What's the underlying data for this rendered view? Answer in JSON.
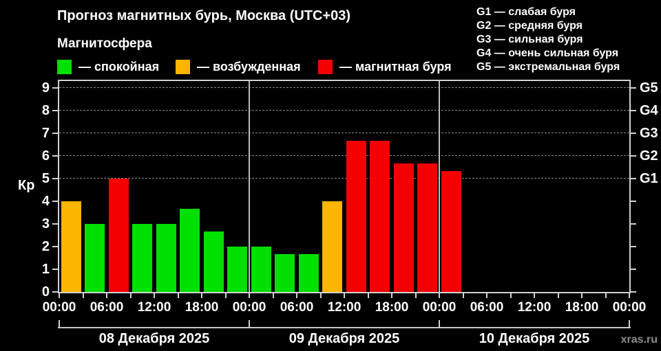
{
  "header": {
    "title": "Прогноз магнитных бурь, Москва (UTC+03)",
    "subtitle": "Магнитосфера"
  },
  "magnetosphere_legend": [
    {
      "key": "quiet",
      "color": "#00e000",
      "label": "— спокойная"
    },
    {
      "key": "unsettled",
      "color": "#fcb500",
      "label": "— возбужденная"
    },
    {
      "key": "storm",
      "color": "#f40000",
      "label": "— магнитная буря"
    }
  ],
  "g_scale_legend": [
    {
      "label": "G1 — слабая буря"
    },
    {
      "label": "G2 — средняя буря"
    },
    {
      "label": "G3 — сильная буря"
    },
    {
      "label": "G4 — очень сильная буря"
    },
    {
      "label": "G5 — экстремальная буря"
    }
  ],
  "watermark": "xras.ru",
  "chart_data": {
    "type": "bar",
    "title": "Прогноз магнитных бурь, Москва (UTC+03)",
    "ylabel": "Кр",
    "xlabel": "",
    "y_axis": {
      "min": 0,
      "max": 9,
      "ticks": [
        0,
        1,
        2,
        3,
        4,
        5,
        6,
        7,
        8,
        9
      ]
    },
    "right_axis": {
      "labels": [
        "G1",
        "G2",
        "G3",
        "G4",
        "G5"
      ],
      "at_kp": [
        5,
        6,
        7,
        8,
        9
      ]
    },
    "gridlines_at_kp": [
      5,
      6,
      7,
      8,
      9
    ],
    "grid": "dashed-horizontal-on-storm-levels-only",
    "legend_position": "top-left",
    "bar_interval_hours": 3,
    "x_tick_labels": [
      "00:00",
      "06:00",
      "12:00",
      "18:00",
      "00:00",
      "06:00",
      "12:00",
      "18:00",
      "00:00",
      "06:00",
      "12:00",
      "18:00",
      "00:00"
    ],
    "colors": {
      "quiet": "#00e000",
      "unsettled": "#fcb500",
      "storm": "#f40000"
    },
    "days": [
      {
        "date_label": "08 Декабря 2025",
        "bars": [
          {
            "time": "00:00",
            "kp": 4.0,
            "state": "unsettled"
          },
          {
            "time": "03:00",
            "kp": 3.0,
            "state": "quiet"
          },
          {
            "time": "06:00",
            "kp": 5.0,
            "state": "storm"
          },
          {
            "time": "09:00",
            "kp": 3.0,
            "state": "quiet"
          },
          {
            "time": "12:00",
            "kp": 3.0,
            "state": "quiet"
          },
          {
            "time": "15:00",
            "kp": 3.67,
            "state": "quiet"
          },
          {
            "time": "18:00",
            "kp": 2.67,
            "state": "quiet"
          },
          {
            "time": "21:00",
            "kp": 2.0,
            "state": "quiet"
          }
        ]
      },
      {
        "date_label": "09 Декабря 2025",
        "bars": [
          {
            "time": "00:00",
            "kp": 2.0,
            "state": "quiet"
          },
          {
            "time": "03:00",
            "kp": 1.67,
            "state": "quiet"
          },
          {
            "time": "06:00",
            "kp": 1.67,
            "state": "quiet"
          },
          {
            "time": "09:00",
            "kp": 4.0,
            "state": "unsettled"
          },
          {
            "time": "12:00",
            "kp": 6.67,
            "state": "storm"
          },
          {
            "time": "15:00",
            "kp": 6.67,
            "state": "storm"
          },
          {
            "time": "18:00",
            "kp": 5.67,
            "state": "storm"
          },
          {
            "time": "21:00",
            "kp": 5.67,
            "state": "storm"
          }
        ]
      },
      {
        "date_label": "10 Декабря 2025",
        "bars": [
          {
            "time": "00:00",
            "kp": 5.33,
            "state": "storm"
          }
        ]
      }
    ]
  }
}
